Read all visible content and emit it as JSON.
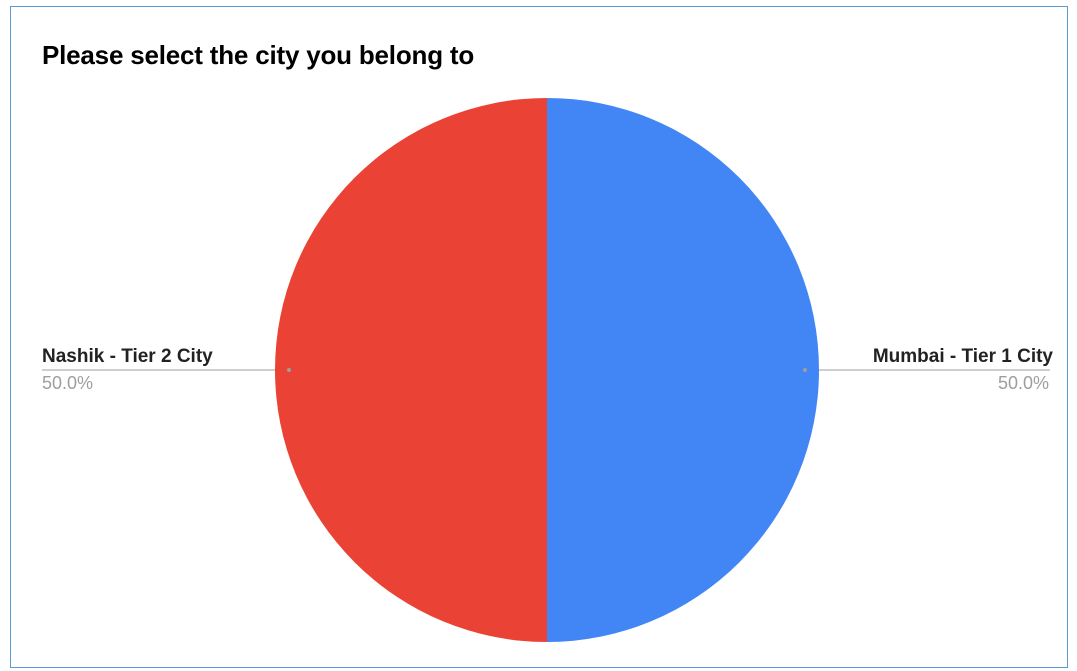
{
  "chart_data": {
    "type": "pie",
    "title": "Please select the city you belong to",
    "slices": [
      {
        "label": "Mumbai - Tier 1 City",
        "value": 50.0,
        "percent_label": "50.0%",
        "color": "#4285f4"
      },
      {
        "label": "Nashik - Tier 2 City",
        "value": 50.0,
        "percent_label": "50.0%",
        "color": "#ea4335"
      }
    ],
    "legend": "none",
    "label_style": "callout"
  }
}
